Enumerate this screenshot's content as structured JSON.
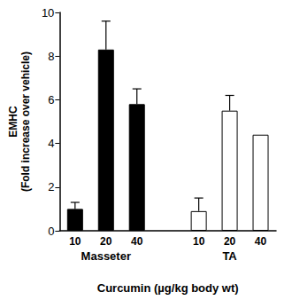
{
  "chart_data": {
    "type": "bar",
    "ylabel": [
      "EMHC",
      "(Fold increase over vehicle)"
    ],
    "xlabel": "Curcumin (µg/kg body wt)",
    "categories": [
      "10",
      "20",
      "40",
      null,
      "10",
      "20",
      "40"
    ],
    "series": [
      {
        "name": "Masseter",
        "color": "#000000",
        "values": [
          1.0,
          8.3,
          5.8,
          null,
          null,
          null,
          null
        ],
        "errors": [
          0.3,
          1.3,
          0.7,
          null,
          null,
          null,
          null
        ]
      },
      {
        "name": "TA",
        "color": "#ffffff",
        "values": [
          null,
          null,
          null,
          null,
          0.9,
          5.5,
          4.4
        ],
        "errors": [
          null,
          null,
          null,
          null,
          0.6,
          0.7,
          null
        ]
      }
    ],
    "ylim": [
      0,
      10
    ],
    "yticks": [
      0,
      2,
      4,
      6,
      8,
      10
    ],
    "grid": false
  }
}
